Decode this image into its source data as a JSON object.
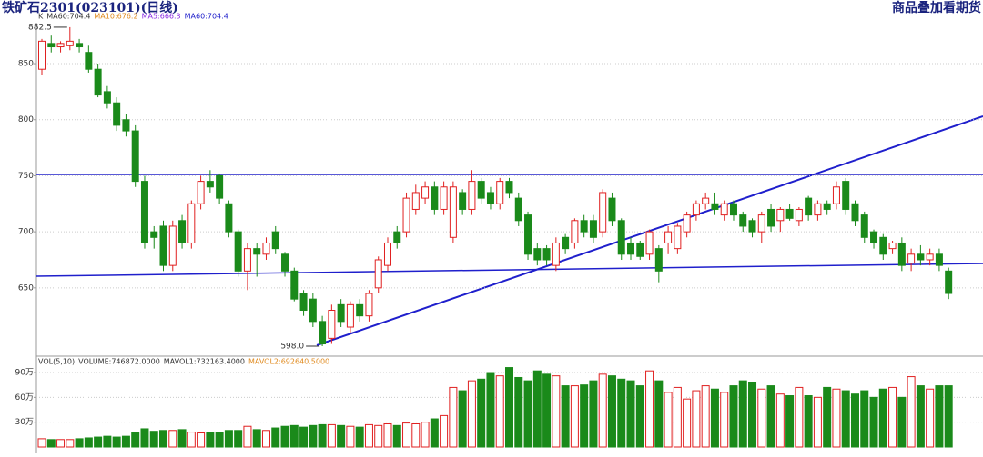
{
  "header": {
    "title": "铁矿石2301(023101)(日线)",
    "right_title": "商品叠加看期货"
  },
  "chart_data": [
    {
      "type": "candlestick",
      "legend": [
        {
          "text": "K",
          "color": "#333333"
        },
        {
          "text": "MA60:704.4",
          "color": "#333333"
        },
        {
          "text": "MA10:676.2",
          "color": "#e08a1e"
        },
        {
          "text": "MA5:666.3",
          "color": "#8a2be2"
        },
        {
          "text": "MA60:704.4",
          "color": "#2222cc"
        }
      ],
      "open": [
        845,
        868,
        865,
        866,
        868,
        860,
        845,
        825,
        815,
        800,
        790,
        745,
        700,
        705,
        670,
        710,
        690,
        725,
        745,
        750,
        725,
        700,
        665,
        685,
        680,
        700,
        680,
        665,
        645,
        640,
        620,
        605,
        635,
        615,
        635,
        625,
        650,
        670,
        700,
        700,
        720,
        730,
        740,
        720,
        695,
        735,
        720,
        745,
        735,
        725,
        745,
        730,
        715,
        685,
        685,
        670,
        695,
        690,
        710,
        710,
        700,
        730,
        710,
        690,
        690,
        680,
        685,
        690,
        685,
        700,
        715,
        725,
        725,
        715,
        725,
        715,
        710,
        700,
        720,
        710,
        720,
        710,
        730,
        715,
        725,
        725,
        745,
        725,
        715,
        700,
        695,
        685,
        690,
        672,
        680,
        675,
        680,
        665
      ],
      "high": [
        872,
        875,
        870,
        882.5,
        872,
        866,
        850,
        830,
        820,
        805,
        795,
        750,
        705,
        710,
        710,
        715,
        728,
        750,
        755,
        752,
        728,
        702,
        690,
        690,
        695,
        705,
        682,
        668,
        648,
        645,
        625,
        635,
        640,
        638,
        640,
        648,
        678,
        695,
        705,
        735,
        742,
        745,
        745,
        745,
        745,
        738,
        755,
        748,
        740,
        748,
        748,
        735,
        718,
        690,
        688,
        695,
        698,
        712,
        715,
        715,
        738,
        735,
        712,
        695,
        692,
        702,
        688,
        705,
        708,
        718,
        728,
        735,
        735,
        728,
        728,
        718,
        712,
        718,
        725,
        722,
        725,
        722,
        732,
        728,
        728,
        745,
        748,
        728,
        718,
        702,
        698,
        692,
        695,
        685,
        688,
        685,
        685,
        668
      ],
      "low": [
        840,
        860,
        860,
        862,
        860,
        842,
        820,
        810,
        790,
        785,
        740,
        685,
        685,
        665,
        665,
        685,
        685,
        720,
        735,
        725,
        695,
        660,
        648,
        660,
        675,
        680,
        660,
        638,
        625,
        615,
        598,
        600,
        615,
        610,
        620,
        620,
        645,
        665,
        685,
        695,
        715,
        725,
        715,
        715,
        690,
        715,
        715,
        725,
        720,
        720,
        730,
        705,
        675,
        670,
        670,
        665,
        680,
        685,
        695,
        690,
        695,
        705,
        675,
        675,
        675,
        675,
        655,
        680,
        680,
        695,
        710,
        720,
        715,
        710,
        710,
        700,
        695,
        690,
        700,
        700,
        710,
        705,
        710,
        710,
        715,
        720,
        715,
        705,
        690,
        685,
        675,
        680,
        665,
        665,
        670,
        670,
        665,
        640
      ],
      "close": [
        870,
        865,
        868,
        870,
        865,
        845,
        822,
        815,
        795,
        790,
        745,
        690,
        695,
        670,
        705,
        690,
        725,
        745,
        740,
        730,
        700,
        665,
        685,
        680,
        690,
        685,
        665,
        640,
        630,
        620,
        600,
        630,
        620,
        635,
        625,
        645,
        675,
        690,
        690,
        730,
        735,
        740,
        720,
        740,
        740,
        720,
        745,
        730,
        725,
        745,
        735,
        710,
        680,
        675,
        675,
        690,
        685,
        710,
        700,
        695,
        735,
        710,
        680,
        680,
        678,
        700,
        665,
        700,
        705,
        715,
        725,
        730,
        720,
        725,
        715,
        705,
        700,
        715,
        705,
        720,
        712,
        720,
        715,
        725,
        720,
        740,
        720,
        710,
        695,
        690,
        680,
        690,
        670,
        680,
        675,
        680,
        670,
        645
      ],
      "ylim": [
        590.7,
        886.5
      ],
      "yticks": [
        650,
        700,
        750,
        800,
        850
      ],
      "grid": true,
      "up_color": "#e02020",
      "down_color": "#1a8a1a",
      "annotations": [
        {
          "value": 882.5,
          "label": "882.5",
          "index": 3
        },
        {
          "value": 598,
          "label": "598.0",
          "index": 30
        }
      ]
    },
    {
      "type": "bar",
      "legend": [
        {
          "text": "VOL(5,10)",
          "color": "#333333"
        },
        {
          "text": "VOLUME:746872.0000",
          "color": "#333333"
        },
        {
          "text": "MAVOL1:732163.4000",
          "color": "#333333"
        },
        {
          "text": "MAVOL2:692640.5000",
          "color": "#e08a1e"
        }
      ],
      "values": [
        100000,
        90000,
        90000,
        90000,
        100000,
        110000,
        120000,
        130000,
        120000,
        130000,
        170000,
        220000,
        190000,
        200000,
        200000,
        210000,
        180000,
        170000,
        180000,
        180000,
        200000,
        200000,
        250000,
        210000,
        200000,
        230000,
        250000,
        260000,
        240000,
        260000,
        270000,
        270000,
        260000,
        250000,
        240000,
        270000,
        260000,
        280000,
        260000,
        290000,
        280000,
        300000,
        340000,
        380000,
        720000,
        680000,
        800000,
        820000,
        900000,
        860000,
        960000,
        840000,
        800000,
        920000,
        880000,
        860000,
        740000,
        740000,
        750000,
        800000,
        880000,
        860000,
        820000,
        800000,
        740000,
        920000,
        800000,
        660000,
        720000,
        580000,
        680000,
        740000,
        700000,
        660000,
        740000,
        800000,
        780000,
        700000,
        740000,
        640000,
        620000,
        720000,
        620000,
        600000,
        720000,
        700000,
        680000,
        640000,
        680000,
        600000,
        700000,
        720000,
        600000,
        850000,
        740000,
        700000,
        740000,
        740000
      ],
      "ylim": [
        0,
        1010000
      ],
      "yticks": [
        {
          "value": 300000,
          "label": "30万"
        },
        {
          "value": 600000,
          "label": "60万"
        },
        {
          "value": 900000,
          "label": "90万"
        }
      ],
      "grid": true
    }
  ]
}
